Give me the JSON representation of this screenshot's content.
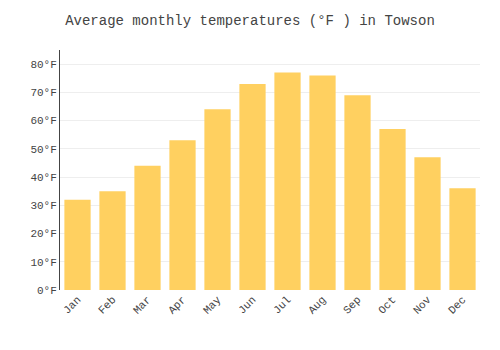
{
  "chart_data": {
    "type": "bar",
    "title": "Average monthly temperatures (°F ) in Towson",
    "categories": [
      "Jan",
      "Feb",
      "Mar",
      "Apr",
      "May",
      "Jun",
      "Jul",
      "Aug",
      "Sep",
      "Oct",
      "Nov",
      "Dec"
    ],
    "values": [
      32,
      35,
      44,
      53,
      64,
      73,
      77,
      76,
      69,
      57,
      47,
      36
    ],
    "color": "#FFD060",
    "ylim": [
      0,
      85
    ],
    "yticks": [
      {
        "value": 0,
        "label": "0°F"
      },
      {
        "value": 10,
        "label": "10°F"
      },
      {
        "value": 20,
        "label": "20°F"
      },
      {
        "value": 30,
        "label": "30°F"
      },
      {
        "value": 40,
        "label": "40°F"
      },
      {
        "value": 50,
        "label": "50°F"
      },
      {
        "value": 60,
        "label": "60°F"
      },
      {
        "value": 70,
        "label": "70°F"
      },
      {
        "value": 80,
        "label": "80°F"
      }
    ],
    "grid": true
  }
}
